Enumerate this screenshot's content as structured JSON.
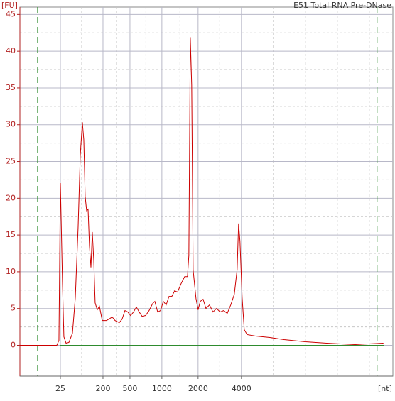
{
  "chart_data": {
    "type": "line",
    "title": "E51 Total RNA Pre-DNase",
    "y_label": "[FU]",
    "x_label": "[nt]",
    "xlim": [
      19,
      70.3
    ],
    "ylim": [
      -4.2,
      46
    ],
    "xticks": [
      {
        "value": 24.57,
        "label": "25"
      },
      {
        "value": 30.43,
        "label": "200"
      },
      {
        "value": 34.14,
        "label": "500"
      },
      {
        "value": 38.53,
        "label": "1000"
      },
      {
        "value": 43.51,
        "label": "2000"
      },
      {
        "value": 49.47,
        "label": "4000"
      }
    ],
    "yticks": [
      0,
      5,
      10,
      15,
      20,
      25,
      30,
      35,
      40,
      45
    ],
    "grid": true,
    "markers": [
      21.44,
      68.12
    ],
    "marker_color": "#2e8b2e",
    "x": [
      19.0,
      24.08,
      24.37,
      24.57,
      24.86,
      25.05,
      25.35,
      25.74,
      26.23,
      26.62,
      27.01,
      27.3,
      27.59,
      27.79,
      27.98,
      28.18,
      28.38,
      28.57,
      28.77,
      28.96,
      29.16,
      29.35,
      29.64,
      29.94,
      30.33,
      30.91,
      31.4,
      31.7,
      32.09,
      32.67,
      33.06,
      33.45,
      33.84,
      34.23,
      34.63,
      35.02,
      35.41,
      35.8,
      36.29,
      36.77,
      37.26,
      37.56,
      37.95,
      38.34,
      38.73,
      39.12,
      39.51,
      39.9,
      40.29,
      40.68,
      41.17,
      41.66,
      42.05,
      42.24,
      42.44,
      42.63,
      42.83,
      43.22,
      43.51,
      43.81,
      44.2,
      44.59,
      45.08,
      45.56,
      46.05,
      46.54,
      47.03,
      47.52,
      48.0,
      48.49,
      48.88,
      49.08,
      49.27,
      49.57,
      49.86,
      50.25,
      51.42,
      53.38,
      55.33,
      58.26,
      61.19,
      65.1,
      69.0
    ],
    "series": [
      {
        "color": "#cc0000",
        "values": [
          0,
          0,
          0.67,
          22.06,
          8.38,
          1.16,
          0.29,
          0.39,
          1.64,
          6.45,
          16.09,
          25.72,
          30.35,
          27.94,
          20.23,
          18.3,
          18.5,
          13.49,
          10.6,
          15.41,
          11.56,
          5.78,
          4.82,
          5.3,
          3.37,
          3.37,
          3.66,
          3.85,
          3.37,
          3.08,
          3.56,
          4.72,
          4.53,
          4.05,
          4.53,
          5.2,
          4.53,
          3.95,
          4.05,
          4.72,
          5.68,
          5.97,
          4.53,
          4.72,
          5.97,
          5.49,
          6.65,
          6.65,
          7.42,
          7.23,
          8.38,
          9.34,
          9.34,
          12.24,
          41.91,
          35.36,
          10.21,
          6.36,
          4.82,
          5.97,
          6.26,
          5.01,
          5.49,
          4.53,
          5.01,
          4.53,
          4.72,
          4.34,
          5.49,
          6.94,
          10.31,
          16.57,
          14.16,
          6.45,
          2.12,
          1.45,
          1.25,
          1.06,
          0.77,
          0.48,
          0.29,
          0.1,
          0.29
        ]
      }
    ]
  }
}
